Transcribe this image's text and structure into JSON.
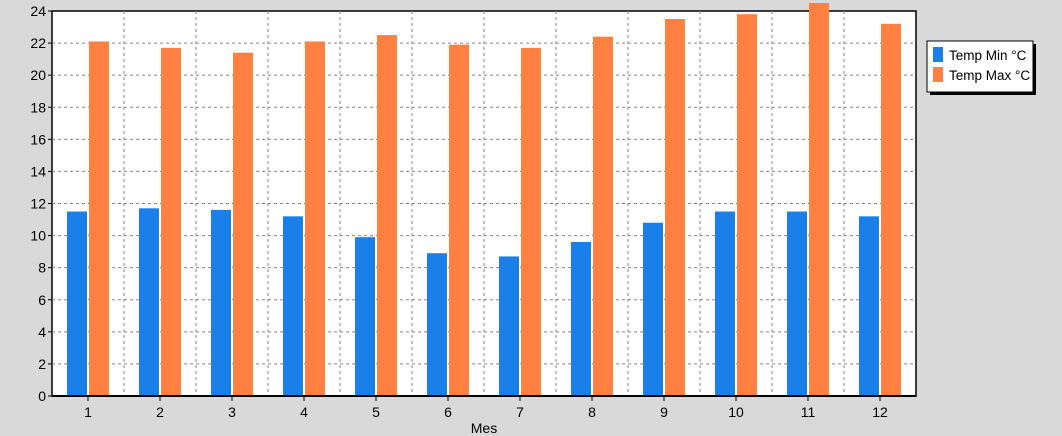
{
  "chart_data": {
    "type": "bar",
    "title": "",
    "xlabel": "Mes",
    "ylabel": "",
    "categories": [
      "1",
      "2",
      "3",
      "4",
      "5",
      "6",
      "7",
      "8",
      "9",
      "10",
      "11",
      "12"
    ],
    "series": [
      {
        "name": "Temp Min  °C",
        "color": "#1a7fe8",
        "values": [
          11.5,
          11.7,
          11.6,
          11.2,
          9.9,
          8.9,
          8.7,
          9.6,
          10.8,
          11.5,
          11.5,
          11.2
        ]
      },
      {
        "name": "Temp Max  °C",
        "color": "#ff8040",
        "values": [
          22.1,
          21.7,
          21.4,
          22.1,
          22.5,
          21.9,
          21.7,
          22.4,
          23.5,
          23.8,
          24.5,
          23.2
        ]
      }
    ],
    "ylim": [
      0,
      24
    ],
    "yticks": [
      0,
      2,
      4,
      6,
      8,
      10,
      12,
      14,
      16,
      18,
      20,
      22,
      24
    ],
    "grid": true,
    "legend": "top-right"
  }
}
